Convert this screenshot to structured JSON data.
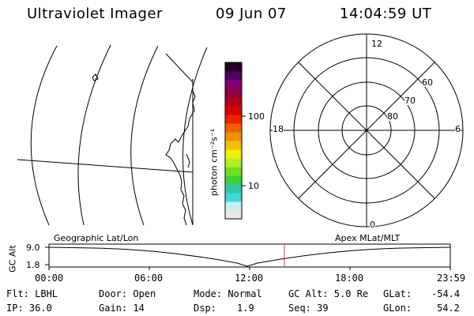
{
  "header": {
    "title": "Ultraviolet Imager",
    "date": "09 Jun 07",
    "time": "14:04:59 UT"
  },
  "colorbar": {
    "unit_label": "photon cm⁻²s⁻¹",
    "tick_100": "100",
    "tick_10": "10",
    "colors": [
      "#e8e8e8",
      "#c8f0f0",
      "#40d8d8",
      "#30c8a0",
      "#40d040",
      "#70e020",
      "#b0f020",
      "#f0f000",
      "#f0c000",
      "#f09000",
      "#f06000",
      "#f02000",
      "#d80000",
      "#b00020",
      "#900040",
      "#800070",
      "#500060",
      "#200020"
    ]
  },
  "polar": {
    "label_12": "12",
    "label_18": "18",
    "label_6": "6",
    "label_0": "0",
    "label_60": "60",
    "label_70": "70",
    "label_80": "80"
  },
  "altitude_plot": {
    "y_axis_label": "GC Alt",
    "y_top": "9.0",
    "y_bottom": "1.8",
    "left_title": "Geographic Lat/Lon",
    "right_title": "Apex MLat/MLT",
    "x_ticks": [
      "00:00",
      "06:00",
      "12:00",
      "18:00",
      "23:59"
    ],
    "marker_color": "#e03030",
    "marker_hour": 14.08
  },
  "footer": {
    "filter": "Flt: LBHL",
    "ip": "IP: 36.0",
    "door": "Door: Open",
    "gain": "Gain: 14",
    "mode": "Mode: Normal",
    "dsp_label": "Dsp:",
    "dsp_value": "1.9",
    "gc_alt": "GC Alt: 5.0 Re",
    "seq": "Seq: 39",
    "glat_label": "GLat:",
    "glat_value": "-54.4",
    "glon_label": "GLon:",
    "glon_value": "54.2"
  }
}
